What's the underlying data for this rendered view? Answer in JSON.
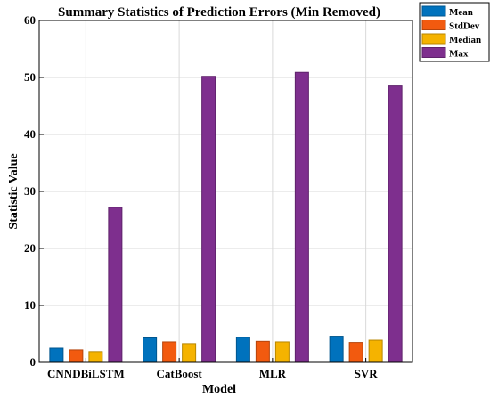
{
  "chart_data": {
    "type": "bar",
    "title": "Summary Statistics of Prediction Errors (Min Removed)",
    "xlabel": "Model",
    "ylabel": "Statistic Value",
    "ylim": [
      0,
      60
    ],
    "yticks": [
      0,
      10,
      20,
      30,
      40,
      50,
      60
    ],
    "grid": true,
    "legend_position": "outside-top-right",
    "categories": [
      "CNNDBiLSTM",
      "CatBoost",
      "MLR",
      "SVR"
    ],
    "series": [
      {
        "name": "Mean",
        "color": "#0072BD",
        "values": [
          2.5,
          4.3,
          4.4,
          4.6
        ]
      },
      {
        "name": "StdDev",
        "color": "#F25A0F",
        "values": [
          2.2,
          3.6,
          3.7,
          3.5
        ]
      },
      {
        "name": "Median",
        "color": "#F5B300",
        "values": [
          1.9,
          3.3,
          3.6,
          3.9
        ]
      },
      {
        "name": "Max",
        "color": "#7E2F8E",
        "values": [
          27.2,
          50.2,
          50.9,
          48.5
        ]
      }
    ]
  }
}
